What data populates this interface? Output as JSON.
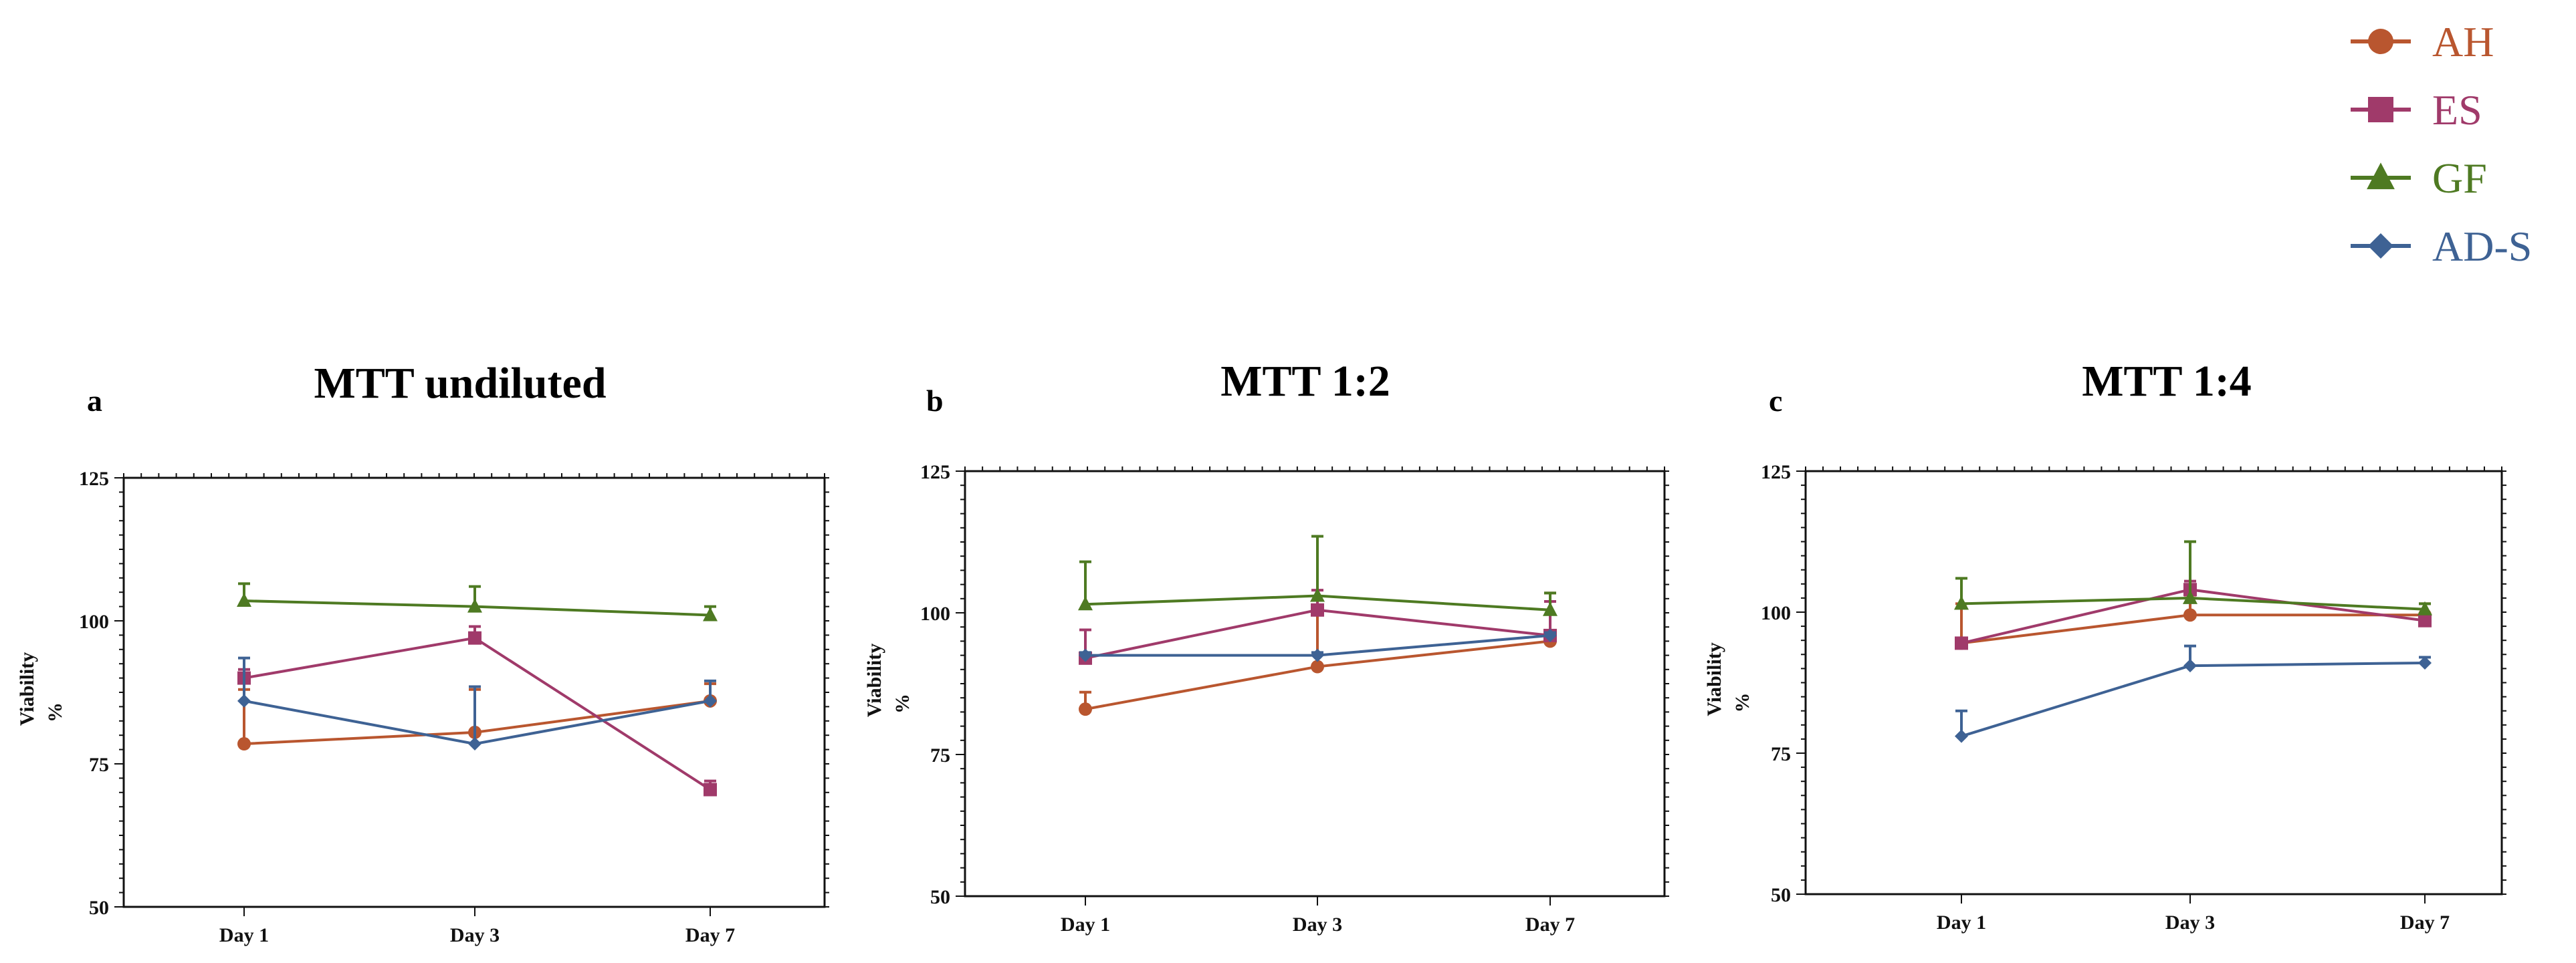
{
  "legend": [
    {
      "name": "AH",
      "color": "#b9562f",
      "marker": "circle"
    },
    {
      "name": "ES",
      "color": "#a03a6a",
      "marker": "square"
    },
    {
      "name": "GF",
      "color": "#4e7a22",
      "marker": "triangle"
    },
    {
      "name": "AD-S",
      "color": "#3e6294",
      "marker": "diamond"
    }
  ],
  "chart_data": [
    {
      "type": "line",
      "panel_letter": "a",
      "title": "MTT undiluted",
      "xlabel": "",
      "ylabel": "Viability",
      "ylabel_unit": "%",
      "categories": [
        "Day 1",
        "Day 3",
        "Day 7"
      ],
      "y_ticks": [
        "50",
        "75",
        "100",
        "125"
      ],
      "ylim": [
        50,
        125
      ],
      "series": [
        {
          "name": "AH",
          "values": [
            78.5,
            80.5,
            86
          ],
          "errors": [
            9.5,
            7.5,
            3
          ]
        },
        {
          "name": "ES",
          "values": [
            90,
            97,
            70.5
          ],
          "errors": [
            1.5,
            2,
            1.5
          ]
        },
        {
          "name": "GF",
          "values": [
            103.5,
            102.5,
            101
          ],
          "errors": [
            3,
            3.5,
            1.5
          ]
        },
        {
          "name": "AD-S",
          "values": [
            86,
            78.5,
            86
          ],
          "errors": [
            7.5,
            10,
            3.5
          ]
        }
      ]
    },
    {
      "type": "line",
      "panel_letter": "b",
      "title": "MTT 1:2",
      "xlabel": "",
      "ylabel": "Viability",
      "ylabel_unit": "%",
      "categories": [
        "Day 1",
        "Day 3",
        "Day 7"
      ],
      "y_ticks": [
        "50",
        "75",
        "100",
        "125"
      ],
      "ylim": [
        50,
        125
      ],
      "series": [
        {
          "name": "AH",
          "values": [
            83,
            90.5,
            95
          ],
          "errors": [
            3,
            10,
            8.5
          ]
        },
        {
          "name": "ES",
          "values": [
            92,
            100.5,
            96
          ],
          "errors": [
            5,
            3.5,
            6
          ]
        },
        {
          "name": "GF",
          "values": [
            101.5,
            103,
            100.5
          ],
          "errors": [
            7.5,
            10.5,
            3
          ]
        },
        {
          "name": "AD-S",
          "values": [
            92.5,
            92.5,
            96
          ],
          "errors": [
            0.5,
            0.5,
            0.5
          ]
        }
      ]
    },
    {
      "type": "line",
      "panel_letter": "c",
      "title": "MTT 1:4",
      "xlabel": "",
      "ylabel": "Viability",
      "ylabel_unit": "%",
      "categories": [
        "Day 1",
        "Day 3",
        "Day 7"
      ],
      "y_ticks": [
        "50",
        "75",
        "100",
        "125"
      ],
      "ylim": [
        50,
        125
      ],
      "series": [
        {
          "name": "AH",
          "values": [
            94.5,
            99.5,
            99.5
          ],
          "errors": [
            7,
            3.5,
            2
          ]
        },
        {
          "name": "ES",
          "values": [
            94.5,
            104,
            98.5
          ],
          "errors": [
            0.5,
            1.5,
            1
          ]
        },
        {
          "name": "GF",
          "values": [
            101.5,
            102.5,
            100.5
          ],
          "errors": [
            4.5,
            10,
            1
          ]
        },
        {
          "name": "AD-S",
          "values": [
            78,
            90.5,
            91
          ],
          "errors": [
            4.5,
            3.5,
            1
          ]
        }
      ]
    }
  ]
}
